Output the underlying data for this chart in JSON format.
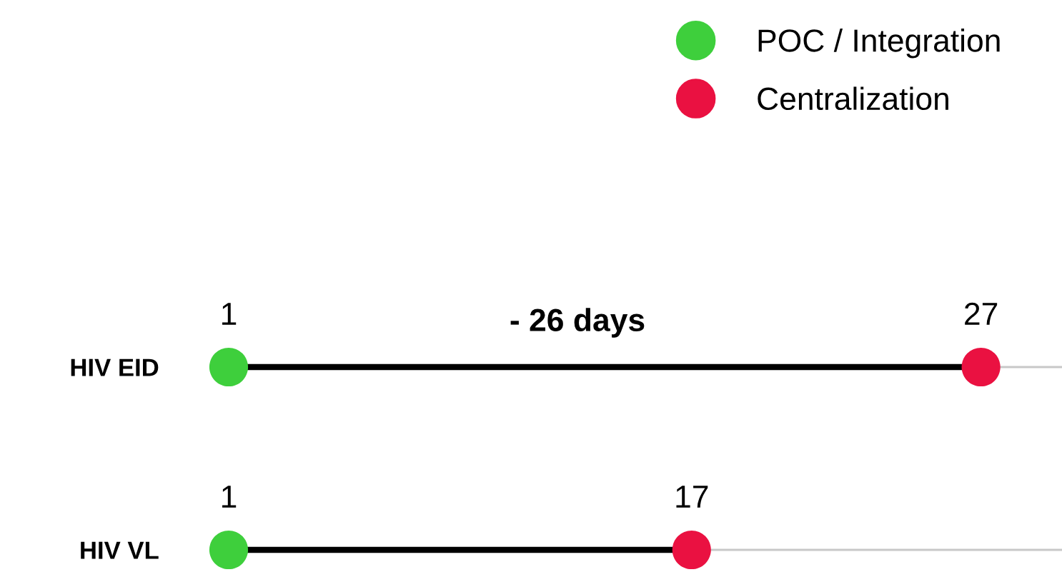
{
  "chart_data": {
    "type": "scatter",
    "categories": [
      "HIV EID",
      "HIV VL"
    ],
    "orientation": "horizontal",
    "series": [
      {
        "name": "POC / Integration",
        "color": "#3ecf3c",
        "values": [
          1,
          1
        ]
      },
      {
        "name": "Centralization",
        "color": "#ea1141",
        "values": [
          27,
          17
        ]
      }
    ],
    "xlim": [
      1,
      29.8
    ],
    "data_labels": true,
    "grid": "y",
    "legend": "top right",
    "tick_labels": "y",
    "marker": "circle",
    "annotations": [
      "- 26 days"
    ]
  }
}
